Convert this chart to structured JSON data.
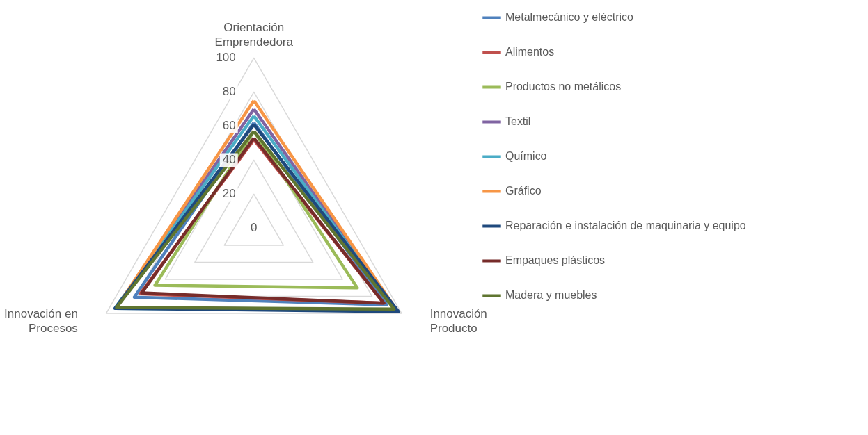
{
  "chart_data": {
    "type": "radar",
    "categories": [
      "Orientación Emprendedora",
      "Innovación Producto",
      "Innovación en Procesos"
    ],
    "ylim": [
      0,
      100
    ],
    "yticks": [
      0,
      20,
      40,
      60,
      80,
      100
    ],
    "grid": true,
    "legend": "right",
    "series": [
      {
        "name": "Metalmecánico y eléctrico",
        "color": "#4f81bd",
        "values": [
          62,
          90,
          81
        ]
      },
      {
        "name": "Alimentos",
        "color": "#c0504d",
        "values": [
          52,
          88,
          77
        ]
      },
      {
        "name": "Productos no metálicos",
        "color": "#9bbb59",
        "values": [
          57,
          70,
          67
        ]
      },
      {
        "name": "Textil",
        "color": "#8064a2",
        "values": [
          70,
          96,
          93
        ]
      },
      {
        "name": "Químico",
        "color": "#4bacc6",
        "values": [
          66,
          96,
          94
        ]
      },
      {
        "name": "Gráfico",
        "color": "#f79646",
        "values": [
          75,
          97,
          93
        ]
      },
      {
        "name": "Reparación e instalación de maquinaria y equipo",
        "color": "#1f497d",
        "values": [
          61,
          98,
          94
        ]
      },
      {
        "name": "Empaques plásticos",
        "color": "#772c2a",
        "values": [
          53,
          88,
          76
        ]
      },
      {
        "name": "Madera y muebles",
        "color": "#5f7530",
        "values": [
          57,
          95,
          93
        ]
      }
    ]
  }
}
